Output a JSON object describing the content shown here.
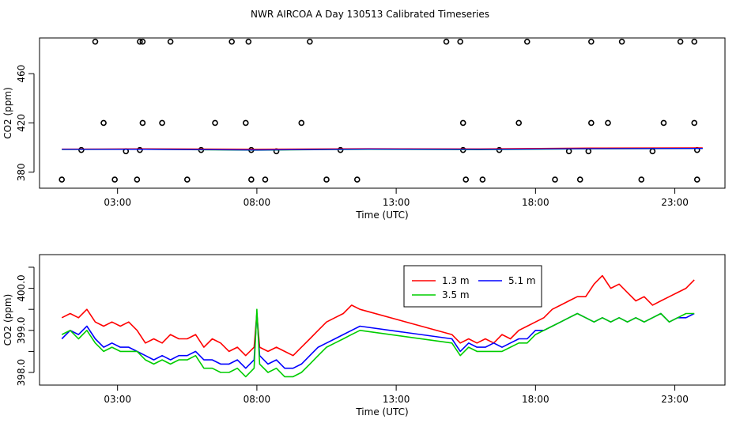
{
  "page_title": "NWR AIRCOA A  Day 130513  Calibrated Timeseries",
  "chart_data": [
    {
      "type": "line",
      "title": "NWR AIRCOA A  Day 130513  Calibrated Timeseries",
      "xlabel": "Time (UTC)",
      "ylabel": "CO2 (ppm)",
      "xlim": [
        0.2,
        24.8
      ],
      "ylim": [
        367,
        489
      ],
      "x_ticks": [
        3,
        8,
        13,
        18,
        23
      ],
      "x_tick_labels": [
        "03:00",
        "08:00",
        "13:00",
        "18:00",
        "23:00"
      ],
      "y_ticks": [
        380,
        420,
        460
      ],
      "y_tick_labels": [
        "380",
        "420",
        "460"
      ],
      "series": [
        {
          "name": "1.3 m",
          "color": "#ff0000",
          "x": [
            1.0,
            4.0,
            8.0,
            12.0,
            16.0,
            20.0,
            24.0
          ],
          "y": [
            398.8,
            399.0,
            398.7,
            399.1,
            398.9,
            399.6,
            399.8
          ]
        },
        {
          "name": "3.5 m",
          "color": "#00cd00",
          "x": [
            1.0,
            4.0,
            8.0,
            12.0,
            16.0,
            20.0,
            24.0
          ],
          "y": [
            398.4,
            398.5,
            397.8,
            398.6,
            398.3,
            399.0,
            399.2
          ]
        },
        {
          "name": "5.1 m",
          "color": "#0000ff",
          "x": [
            1.0,
            4.0,
            8.0,
            12.0,
            16.0,
            20.0,
            24.0
          ],
          "y": [
            398.5,
            398.6,
            398.0,
            398.8,
            398.5,
            399.1,
            399.3
          ]
        }
      ],
      "points": {
        "x": [
          1.0,
          1.7,
          2.2,
          2.5,
          2.9,
          3.3,
          3.7,
          3.8,
          3.8,
          3.9,
          3.9,
          4.6,
          4.9,
          5.5,
          6.0,
          6.5,
          7.1,
          7.6,
          7.7,
          7.8,
          7.8,
          8.3,
          8.7,
          9.6,
          9.9,
          10.5,
          11.0,
          11.6,
          14.8,
          15.3,
          15.4,
          15.4,
          15.5,
          16.1,
          16.7,
          17.4,
          17.7,
          18.7,
          19.2,
          19.6,
          19.9,
          20.0,
          20.0,
          20.6,
          21.1,
          21.8,
          22.2,
          22.6,
          23.2,
          23.7,
          23.7,
          23.8,
          23.8
        ],
        "y": [
          374,
          398,
          486,
          420,
          374,
          397,
          374,
          398,
          486,
          420,
          486,
          420,
          486,
          374,
          398,
          420,
          486,
          420,
          486,
          398,
          374,
          374,
          397,
          420,
          486,
          374,
          398,
          374,
          486,
          486,
          420,
          398,
          374,
          374,
          398,
          420,
          486,
          374,
          397,
          374,
          397,
          420,
          486,
          420,
          486,
          374,
          397,
          420,
          486,
          486,
          420,
          398,
          374
        ]
      }
    },
    {
      "type": "line",
      "title": "",
      "xlabel": "Time (UTC)",
      "ylabel": "CO2 (ppm)",
      "xlim": [
        0.2,
        24.8
      ],
      "ylim": [
        397.7,
        400.8
      ],
      "x_ticks": [
        3,
        8,
        13,
        18,
        23
      ],
      "x_tick_labels": [
        "03:00",
        "08:00",
        "13:00",
        "18:00",
        "23:00"
      ],
      "y_ticks": [
        398.0,
        398.5,
        399.0,
        399.5,
        400.0,
        400.5
      ],
      "y_tick_labels": [
        "398.0",
        "",
        "399.0",
        "",
        "400.0",
        ""
      ],
      "legend": {
        "position": "top-center-right",
        "entries": [
          "1.3 m",
          "5.1 m",
          "3.5 m"
        ]
      },
      "series": [
        {
          "name": "1.3 m",
          "color": "#ff0000",
          "x": [
            1.0,
            1.3,
            1.6,
            1.9,
            2.2,
            2.5,
            2.8,
            3.1,
            3.4,
            3.7,
            4.0,
            4.3,
            4.6,
            4.9,
            5.2,
            5.5,
            5.8,
            6.1,
            6.4,
            6.7,
            7.0,
            7.3,
            7.6,
            7.9,
            8.0,
            8.1,
            8.4,
            8.7,
            9.0,
            9.3,
            9.6,
            9.9,
            10.2,
            10.5,
            10.8,
            11.1,
            11.4,
            11.7,
            15.0,
            15.3,
            15.6,
            15.9,
            16.2,
            16.5,
            16.8,
            17.1,
            17.4,
            17.7,
            18.0,
            18.3,
            18.6,
            18.9,
            19.2,
            19.5,
            19.8,
            20.1,
            20.4,
            20.7,
            21.0,
            21.3,
            21.6,
            21.9,
            22.2,
            22.5,
            22.8,
            23.1,
            23.4,
            23.7
          ],
          "y": [
            399.3,
            399.4,
            399.3,
            399.5,
            399.2,
            399.1,
            399.2,
            399.1,
            399.2,
            399.0,
            398.7,
            398.8,
            398.7,
            398.9,
            398.8,
            398.8,
            398.9,
            398.6,
            398.8,
            398.7,
            398.5,
            398.6,
            398.4,
            398.6,
            399.4,
            398.6,
            398.5,
            398.6,
            398.5,
            398.4,
            398.6,
            398.8,
            399.0,
            399.2,
            399.3,
            399.4,
            399.6,
            399.5,
            398.9,
            398.7,
            398.8,
            398.7,
            398.8,
            398.7,
            398.9,
            398.8,
            399.0,
            399.1,
            399.2,
            399.3,
            399.5,
            399.6,
            399.7,
            399.8,
            399.8,
            400.1,
            400.3,
            400.0,
            400.1,
            399.9,
            399.7,
            399.8,
            399.6,
            399.7,
            399.8,
            399.9,
            400.0,
            400.2
          ]
        },
        {
          "name": "5.1 m",
          "color": "#0000ff",
          "x": [
            1.0,
            1.3,
            1.6,
            1.9,
            2.2,
            2.5,
            2.8,
            3.1,
            3.4,
            3.7,
            4.0,
            4.3,
            4.6,
            4.9,
            5.2,
            5.5,
            5.8,
            6.1,
            6.4,
            6.7,
            7.0,
            7.3,
            7.6,
            7.9,
            8.0,
            8.1,
            8.4,
            8.7,
            9.0,
            9.3,
            9.6,
            9.9,
            10.2,
            10.5,
            10.8,
            11.1,
            11.4,
            11.7,
            15.0,
            15.3,
            15.6,
            15.9,
            16.2,
            16.5,
            16.8,
            17.1,
            17.4,
            17.7,
            18.0,
            18.3,
            18.6,
            18.9,
            19.2,
            19.5,
            19.8,
            20.1,
            20.4,
            20.7,
            21.0,
            21.3,
            21.6,
            21.9,
            22.2,
            22.5,
            22.8,
            23.1,
            23.4,
            23.7
          ],
          "y": [
            398.8,
            399.0,
            398.9,
            399.1,
            398.8,
            398.6,
            398.7,
            398.6,
            398.6,
            398.5,
            398.4,
            398.3,
            398.4,
            398.3,
            398.4,
            398.4,
            398.5,
            398.3,
            398.3,
            398.2,
            398.2,
            398.3,
            398.1,
            398.3,
            399.4,
            398.4,
            398.2,
            398.3,
            398.1,
            398.1,
            398.2,
            398.4,
            398.6,
            398.7,
            398.8,
            398.9,
            399.0,
            399.1,
            398.8,
            398.5,
            398.7,
            398.6,
            398.6,
            398.7,
            398.6,
            398.7,
            398.8,
            398.8,
            399.0,
            399.0,
            399.1,
            399.2,
            399.3,
            399.4,
            399.3,
            399.2,
            399.3,
            399.2,
            399.3,
            399.2,
            399.3,
            399.2,
            399.3,
            399.4,
            399.2,
            399.3,
            399.3,
            399.4
          ]
        },
        {
          "name": "3.5 m",
          "color": "#00cd00",
          "x": [
            1.0,
            1.3,
            1.6,
            1.9,
            2.2,
            2.5,
            2.8,
            3.1,
            3.4,
            3.7,
            4.0,
            4.3,
            4.6,
            4.9,
            5.2,
            5.5,
            5.8,
            6.1,
            6.4,
            6.7,
            7.0,
            7.3,
            7.6,
            7.9,
            8.0,
            8.1,
            8.4,
            8.7,
            9.0,
            9.3,
            9.6,
            9.9,
            10.2,
            10.5,
            10.8,
            11.1,
            11.4,
            11.7,
            15.0,
            15.3,
            15.6,
            15.9,
            16.2,
            16.5,
            16.8,
            17.1,
            17.4,
            17.7,
            18.0,
            18.3,
            18.6,
            18.9,
            19.2,
            19.5,
            19.8,
            20.1,
            20.4,
            20.7,
            21.0,
            21.3,
            21.6,
            21.9,
            22.2,
            22.5,
            22.8,
            23.1,
            23.4,
            23.7
          ],
          "y": [
            398.9,
            399.0,
            398.8,
            399.0,
            398.7,
            398.5,
            398.6,
            398.5,
            398.5,
            398.5,
            398.3,
            398.2,
            398.3,
            398.2,
            398.3,
            398.3,
            398.4,
            398.1,
            398.1,
            398.0,
            398.0,
            398.1,
            397.9,
            398.1,
            399.5,
            398.2,
            398.0,
            398.1,
            397.9,
            397.9,
            398.0,
            398.2,
            398.4,
            398.6,
            398.7,
            398.8,
            398.9,
            399.0,
            398.7,
            398.4,
            398.6,
            398.5,
            398.5,
            398.5,
            398.5,
            398.6,
            398.7,
            398.7,
            398.9,
            399.0,
            399.1,
            399.2,
            399.3,
            399.4,
            399.3,
            399.2,
            399.3,
            399.2,
            399.3,
            399.2,
            399.3,
            399.2,
            399.3,
            399.4,
            399.2,
            399.3,
            399.4,
            399.4
          ]
        }
      ]
    }
  ]
}
